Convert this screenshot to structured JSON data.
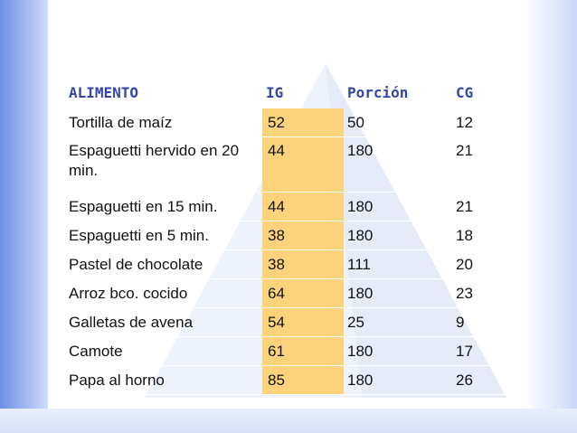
{
  "table": {
    "headers": [
      "ALIMENTO",
      "IG",
      "Porción",
      "CG"
    ],
    "rows": [
      [
        "Tortilla de maíz",
        "52",
        "50",
        "12"
      ],
      [
        "Espaguetti hervido en 20 min.",
        "44",
        "180",
        "21"
      ],
      [
        "Espaguetti en 15 min.",
        "44",
        "180",
        "21"
      ],
      [
        "Espaguetti en 5 min.",
        "38",
        "180",
        "18"
      ],
      [
        "Pastel de chocolate",
        "38",
        "111",
        "20"
      ],
      [
        "Arroz bco. cocido",
        "64",
        "180",
        "23"
      ],
      [
        "Galletas de avena",
        "54",
        "25",
        "9"
      ],
      [
        "Camote",
        "61",
        "180",
        "17"
      ],
      [
        "Papa al horno",
        "85",
        "180",
        "26"
      ]
    ]
  },
  "colors": {
    "header_text": "#3345a8",
    "ig_highlight": "#fcd27a",
    "accent_gradient": "#6f8fe6"
  }
}
